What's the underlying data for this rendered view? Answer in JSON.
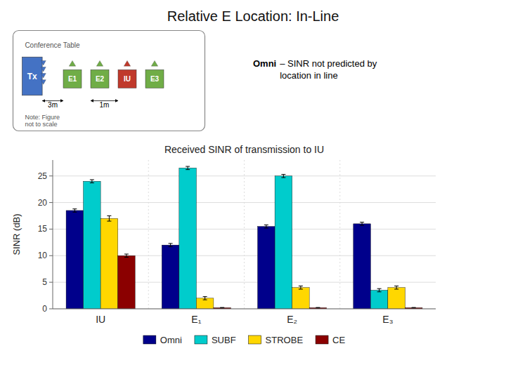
{
  "chart_data": {
    "type": "bar",
    "title": "Relative E Location: In-Line",
    "subtitle": "Received SINR of transmission to IU",
    "ylabel": "SINR (dB)",
    "categories": [
      "IU",
      "E₁",
      "E₂",
      "E₃"
    ],
    "series": [
      {
        "name": "Omni",
        "color": "#00008B",
        "values": [
          18.5,
          12.0,
          15.5,
          16.0
        ],
        "errors": [
          0.3,
          0.3,
          0.3,
          0.3
        ]
      },
      {
        "name": "SUBF",
        "color": "#00CCCC",
        "values": [
          24.0,
          26.5,
          25.0,
          3.5
        ],
        "errors": [
          0.3,
          0.3,
          0.3,
          0.3
        ]
      },
      {
        "name": "STROBE",
        "color": "#FFD700",
        "values": [
          17.0,
          2.0,
          4.0,
          4.0
        ],
        "errors": [
          0.5,
          0.3,
          0.3,
          0.3
        ]
      },
      {
        "name": "CE",
        "color": "#8B0000",
        "values": [
          10.0,
          0.2,
          0.2,
          0.2
        ],
        "errors": [
          0.3,
          0.05,
          0.05,
          0.05
        ]
      }
    ],
    "ylim": [
      0,
      28
    ],
    "yticks": [
      0,
      5,
      10,
      15,
      20,
      25
    ],
    "grid": true,
    "legend": "bottom",
    "annotations": [
      "Omni",
      "– SINR not predicted by\nlocation in line"
    ],
    "diagram": {
      "title": "Conference Table",
      "transmitter": "Tx",
      "tx_color": "#4472C4",
      "devices": [
        "E1",
        "E2",
        "IU",
        "E3"
      ],
      "colors": [
        "#70AD47",
        "#70AD47",
        "#C0392B",
        "#70AD47"
      ],
      "distances": [
        "3m",
        "1m"
      ],
      "note": "Note: Figure\nnot to scale"
    }
  }
}
